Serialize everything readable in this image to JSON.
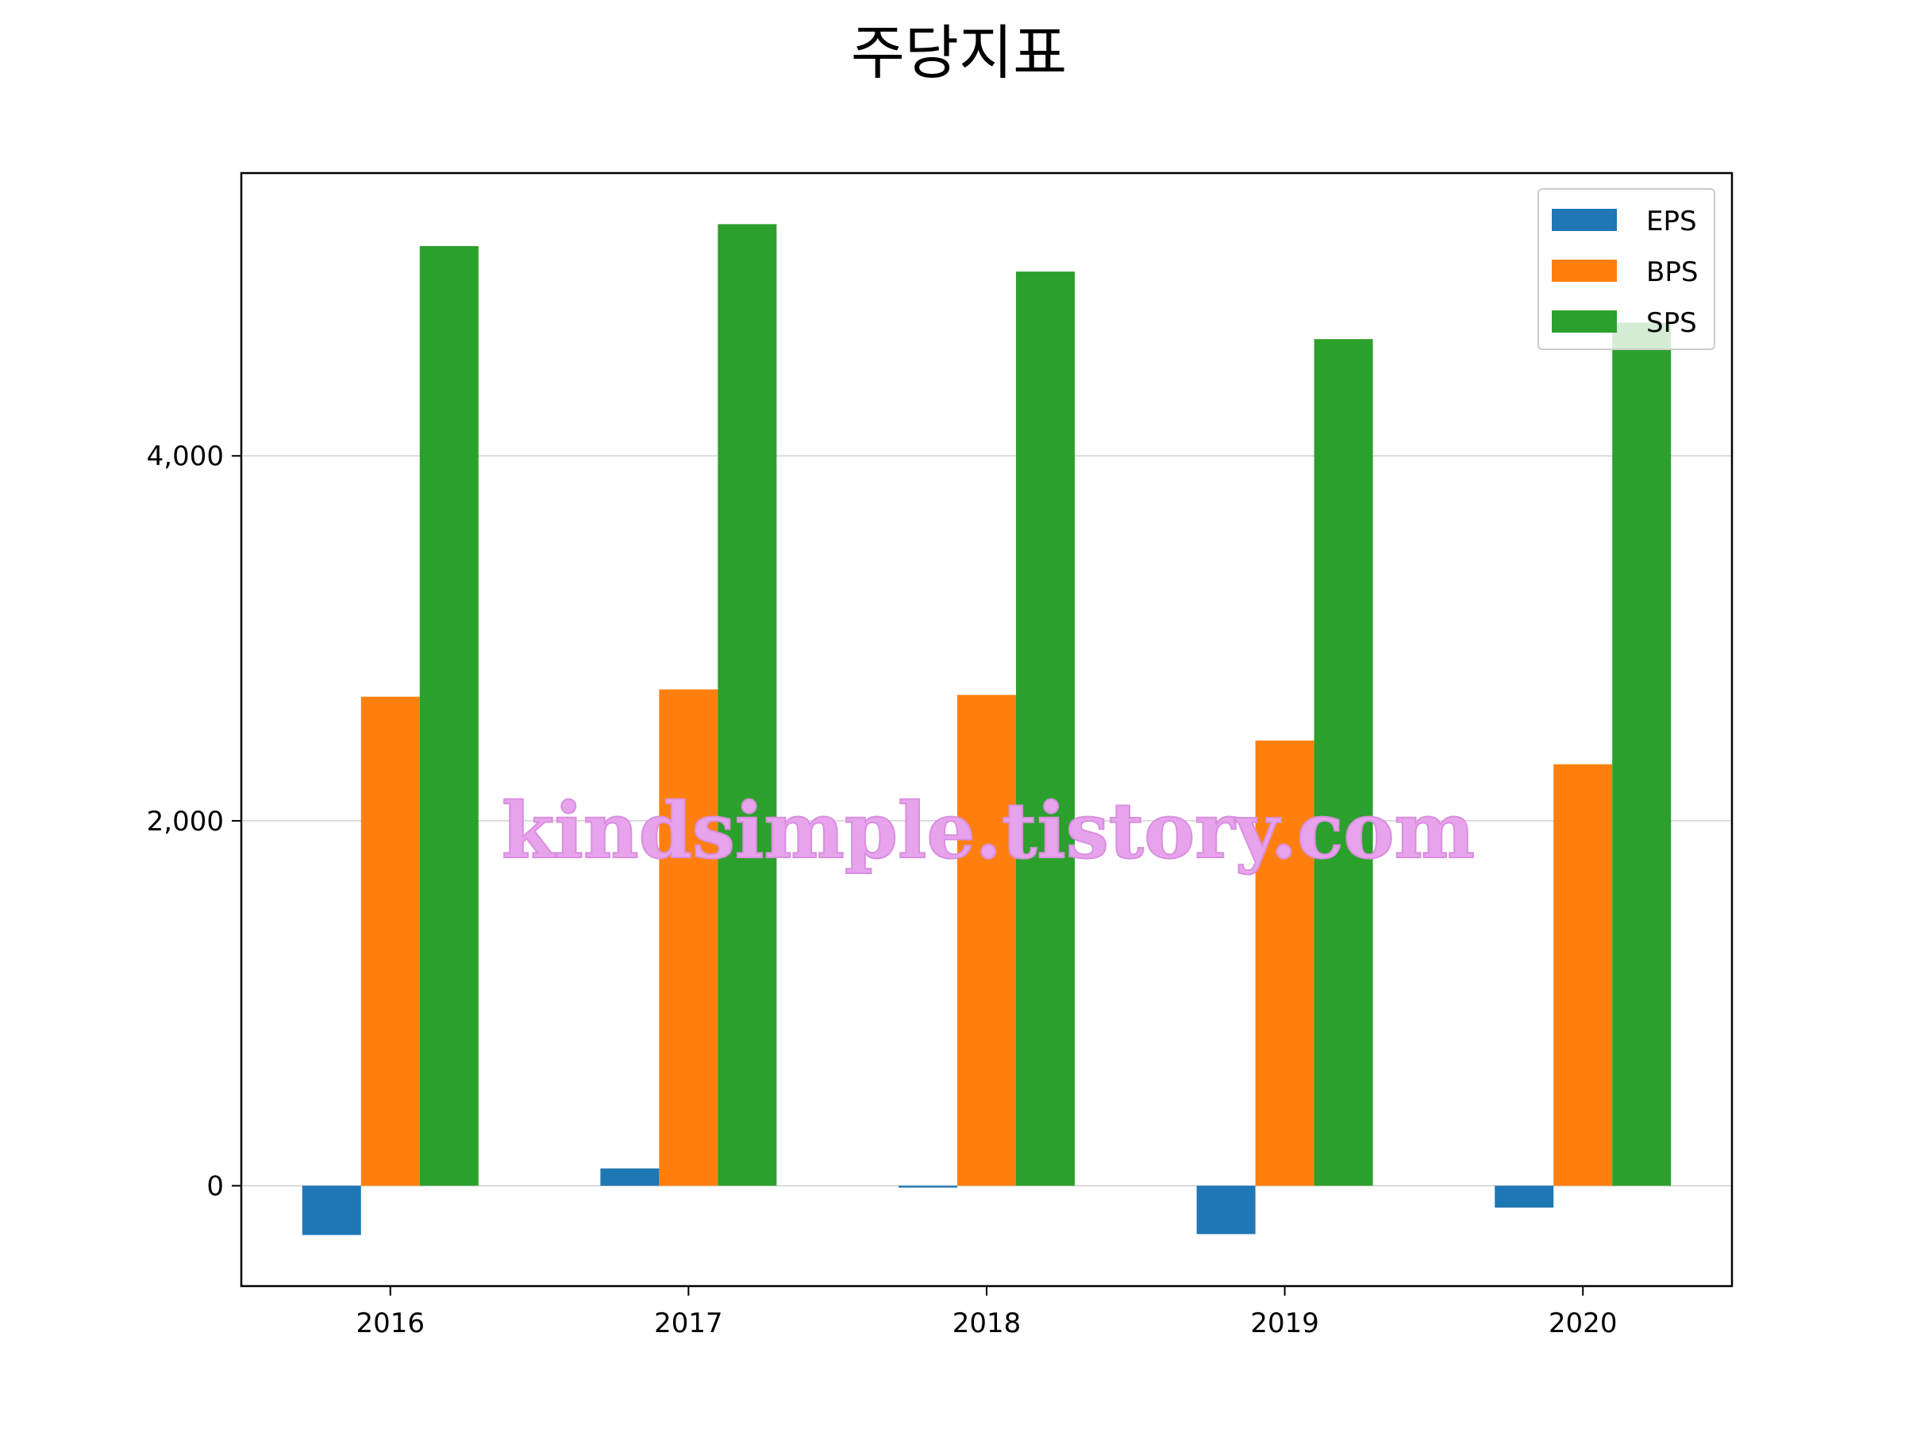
{
  "chart_data": {
    "type": "bar",
    "title": "주당지표",
    "xlabel": "",
    "ylabel": "",
    "categories": [
      "2016",
      "2017",
      "2018",
      "2019",
      "2020"
    ],
    "series": [
      {
        "name": "EPS",
        "color": "#1f77b4",
        "values": [
          -270,
          95,
          -10,
          -265,
          -120
        ]
      },
      {
        "name": "BPS",
        "color": "#ff7f0e",
        "values": [
          2680,
          2720,
          2690,
          2440,
          2310
        ]
      },
      {
        "name": "SPS",
        "color": "#2ca02c",
        "values": [
          5150,
          5270,
          5010,
          4640,
          4730
        ]
      }
    ],
    "ylim": [
      -550,
      5550
    ],
    "yticks": [
      0,
      2000,
      4000
    ],
    "ytick_labels": [
      "0",
      "2,000",
      "4,000"
    ],
    "grid": "y",
    "legend": "top-right",
    "watermark": "kindsimple.tistory.com"
  }
}
